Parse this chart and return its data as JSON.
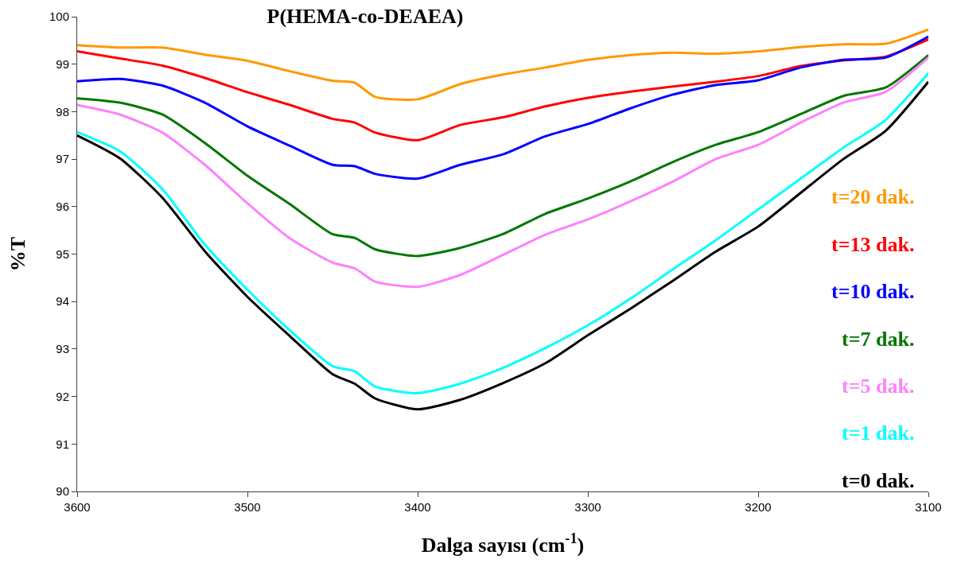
{
  "chart_data": {
    "type": "line",
    "title": "P(HEMA-co-DEAEA)",
    "xlabel": "Dalga sayısı (cm$^{-1}$)",
    "ylabel": "%T",
    "x": [
      3600,
      3575,
      3550,
      3525,
      3500,
      3475,
      3450,
      3437,
      3425,
      3400,
      3375,
      3350,
      3325,
      3300,
      3275,
      3250,
      3225,
      3200,
      3175,
      3150,
      3125,
      3100
    ],
    "series": [
      {
        "name": "t=20 dak.",
        "color": "#ff9900",
        "values": [
          99.4,
          99.35,
          99.35,
          99.2,
          99.07,
          98.85,
          98.65,
          98.61,
          98.31,
          98.26,
          98.58,
          98.78,
          98.93,
          99.09,
          99.19,
          99.24,
          99.22,
          99.27,
          99.36,
          99.42,
          99.43,
          99.73
        ]
      },
      {
        "name": "t=13 dak.",
        "color": "#ff0000",
        "values": [
          99.27,
          99.12,
          98.97,
          98.71,
          98.41,
          98.14,
          97.85,
          97.77,
          97.56,
          97.4,
          97.72,
          97.88,
          98.11,
          98.29,
          98.42,
          98.53,
          98.63,
          98.75,
          98.96,
          99.08,
          99.16,
          99.52
        ]
      },
      {
        "name": "t=10 dak.",
        "color": "#0000ff",
        "values": [
          98.64,
          98.69,
          98.55,
          98.19,
          97.69,
          97.28,
          96.88,
          96.85,
          96.69,
          96.59,
          96.88,
          97.1,
          97.48,
          97.74,
          98.07,
          98.36,
          98.56,
          98.66,
          98.93,
          99.09,
          99.14,
          99.58
        ]
      },
      {
        "name": "t=7 dak.",
        "color": "#007700",
        "values": [
          98.28,
          98.19,
          97.94,
          97.34,
          96.65,
          96.05,
          95.42,
          95.34,
          95.1,
          94.96,
          95.13,
          95.42,
          95.85,
          96.17,
          96.53,
          96.94,
          97.3,
          97.57,
          97.95,
          98.33,
          98.51,
          99.19
        ]
      },
      {
        "name": "t=5 dak.",
        "color": "#ff80ff",
        "values": [
          98.14,
          97.94,
          97.56,
          96.88,
          96.07,
          95.33,
          94.82,
          94.7,
          94.42,
          94.31,
          94.56,
          94.98,
          95.41,
          95.73,
          96.11,
          96.53,
          97.0,
          97.3,
          97.77,
          98.19,
          98.42,
          99.14
        ]
      },
      {
        "name": "t=1 dak.",
        "color": "#00ffff",
        "values": [
          97.57,
          97.17,
          96.37,
          95.2,
          94.25,
          93.39,
          92.64,
          92.53,
          92.21,
          92.07,
          92.27,
          92.6,
          93.02,
          93.5,
          94.06,
          94.68,
          95.29,
          95.94,
          96.59,
          97.24,
          97.83,
          98.81
        ]
      },
      {
        "name": "t=0 dak.",
        "color": "#000000",
        "values": [
          97.5,
          97.02,
          96.19,
          95.06,
          94.1,
          93.27,
          92.47,
          92.27,
          91.96,
          91.73,
          91.93,
          92.28,
          92.7,
          93.29,
          93.85,
          94.44,
          95.05,
          95.58,
          96.29,
          97.0,
          97.6,
          98.63
        ]
      }
    ],
    "xlim": [
      3600,
      3100
    ],
    "xticks": [
      3600,
      3500,
      3400,
      3300,
      3200,
      3100
    ],
    "ylim": [
      90,
      100
    ],
    "yticks": [
      90,
      91,
      92,
      93,
      94,
      95,
      96,
      97,
      98,
      99,
      100
    ],
    "legend": false,
    "marker": "none",
    "line_style": "solid"
  }
}
